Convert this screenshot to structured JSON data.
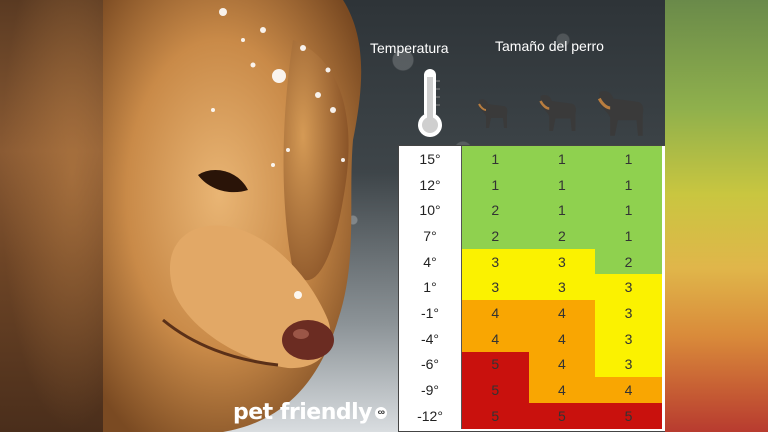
{
  "header": {
    "temperature_label": "Temperatura",
    "size_label": "Tamaño del perro"
  },
  "icons": {
    "thermometer": "thermometer-icon",
    "dog_small": "small-dog-icon",
    "dog_medium": "medium-dog-icon",
    "dog_large": "large-dog-icon"
  },
  "table": {
    "rows": [
      {
        "temp": "15°",
        "values": [
          "1",
          "1",
          "1"
        ]
      },
      {
        "temp": "12°",
        "values": [
          "1",
          "1",
          "1"
        ]
      },
      {
        "temp": "10°",
        "values": [
          "2",
          "1",
          "1"
        ]
      },
      {
        "temp": "7°",
        "values": [
          "2",
          "2",
          "1"
        ]
      },
      {
        "temp": "4°",
        "values": [
          "3",
          "3",
          "2"
        ]
      },
      {
        "temp": "1°",
        "values": [
          "3",
          "3",
          "3"
        ]
      },
      {
        "temp": "-1°",
        "values": [
          "4",
          "4",
          "3"
        ]
      },
      {
        "temp": "-4°",
        "values": [
          "4",
          "4",
          "3"
        ]
      },
      {
        "temp": "-6°",
        "values": [
          "5",
          "4",
          "3"
        ]
      },
      {
        "temp": "-9°",
        "values": [
          "5",
          "4",
          "4"
        ]
      },
      {
        "temp": "-12°",
        "values": [
          "5",
          "5",
          "5"
        ]
      }
    ]
  },
  "risk_colors": {
    "1": "#8fd14f",
    "2": "#8fd14f",
    "3": "#fbf200",
    "4": "#f9a602",
    "5": "#c9110d"
  },
  "brand": {
    "logo_text": "pet friendly",
    "badge": "co"
  }
}
